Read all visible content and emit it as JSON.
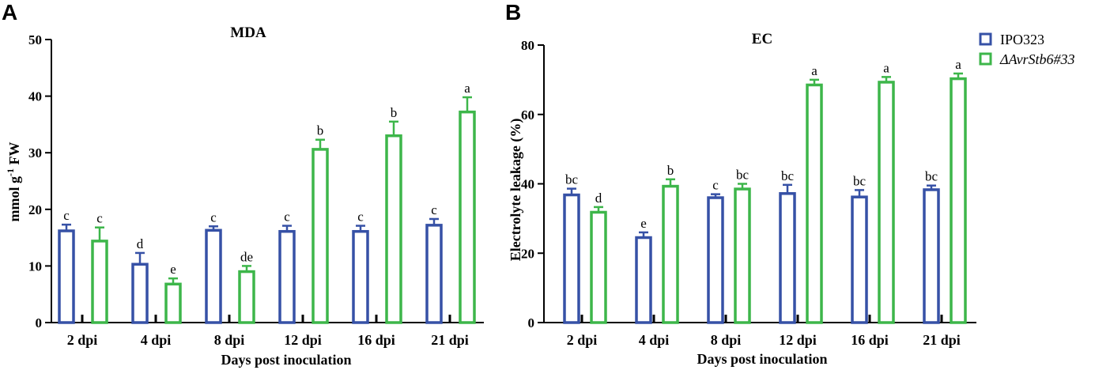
{
  "panels": {
    "a": "A",
    "b": "B"
  },
  "legend": {
    "series1": "IPO323",
    "series2": "ΔAvrStb6#33"
  },
  "colors": {
    "series1": "#3651a6",
    "series2": "#3db64a"
  },
  "chart_data": [
    {
      "type": "bar",
      "panel": "A",
      "title": "MDA",
      "xlabel": "Days post inoculation",
      "ylabel_parts": [
        "mmol g",
        "-1",
        " FW"
      ],
      "categories": [
        "2 dpi",
        "4 dpi",
        "8 dpi",
        "12 dpi",
        "16 dpi",
        "21 dpi"
      ],
      "ylim": [
        0,
        50
      ],
      "yticks": [
        "0",
        "10",
        "20",
        "30",
        "40",
        "50"
      ],
      "series": [
        {
          "name": "IPO323",
          "values": [
            16.2,
            10.3,
            16.3,
            16.1,
            16.1,
            17.2
          ],
          "errors": [
            1.1,
            2.0,
            0.7,
            1.0,
            1.0,
            1.1
          ],
          "labels": [
            "c",
            "d",
            "c",
            "c",
            "c",
            "c"
          ]
        },
        {
          "name": "ΔAvrStb6#33",
          "values": [
            14.4,
            6.8,
            9.0,
            30.6,
            33.0,
            37.2
          ],
          "errors": [
            2.4,
            1.0,
            1.0,
            1.7,
            2.5,
            2.6
          ],
          "labels": [
            "c",
            "e",
            "de",
            "b",
            "b",
            "a"
          ]
        }
      ]
    },
    {
      "type": "bar",
      "panel": "B",
      "title": "EC",
      "xlabel": "Days post inoculation",
      "ylabel": "Electrolyte leakage (%)",
      "categories": [
        "2 dpi",
        "4 dpi",
        "8 dpi",
        "12 dpi",
        "16 dpi",
        "21 dpi"
      ],
      "ylim": [
        0,
        80
      ],
      "yticks": [
        "0",
        "20",
        "40",
        "60",
        "80"
      ],
      "series": [
        {
          "name": "IPO323",
          "values": [
            36.8,
            24.5,
            36.0,
            37.2,
            36.2,
            38.3
          ],
          "errors": [
            1.8,
            1.5,
            1.0,
            2.5,
            2.0,
            1.2
          ],
          "labels": [
            "bc",
            "e",
            "c",
            "bc",
            "bc",
            "bc"
          ]
        },
        {
          "name": "ΔAvrStb6#33",
          "values": [
            31.8,
            39.3,
            38.5,
            68.5,
            69.3,
            70.3
          ],
          "errors": [
            1.5,
            2.0,
            1.5,
            1.5,
            1.5,
            1.5
          ],
          "labels": [
            "d",
            "b",
            "bc",
            "a",
            "a",
            "a"
          ]
        }
      ]
    }
  ]
}
